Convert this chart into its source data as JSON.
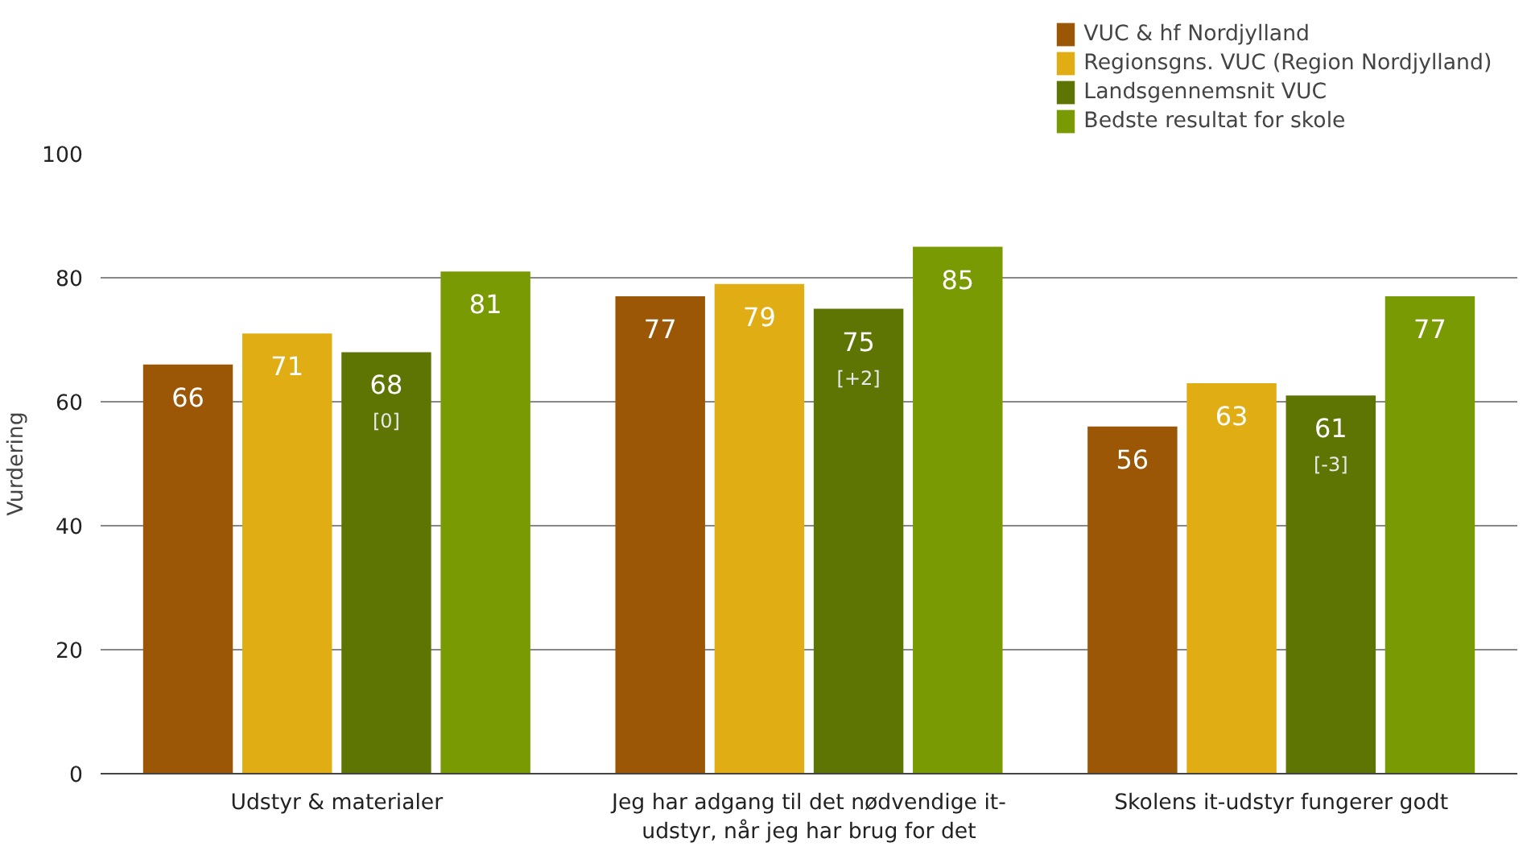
{
  "chart_data": {
    "type": "bar",
    "ylabel": "Vurdering",
    "categories": [
      "Udstyr & materialer",
      "Jeg har adgang til det nødvendige it-udstyr, når jeg har brug for det",
      "Skolens it-udstyr fungerer godt"
    ],
    "series": [
      {
        "name": "VUC & hf Nordjylland",
        "color": "#9b5705",
        "values": [
          66,
          77,
          56
        ],
        "value_labels": [
          "66",
          "77",
          "56"
        ]
      },
      {
        "name": "Regionsgns. VUC (Region Nordjylland)",
        "color": "#e0ae14",
        "values": [
          71,
          79,
          63
        ],
        "value_labels": [
          "71",
          "79",
          "63"
        ]
      },
      {
        "name": "Landsgennemsnit VUC",
        "color": "#5e7504",
        "values": [
          68,
          75,
          61
        ],
        "value_labels": [
          "68\n[0]",
          "75\n[+2]",
          "61\n[-3]"
        ]
      },
      {
        "name": "Bedste resultat for skole",
        "color": "#7a9a04",
        "values": [
          81,
          85,
          77
        ],
        "value_labels": [
          "81",
          "85",
          "77"
        ]
      }
    ],
    "ylim": [
      0,
      100
    ],
    "yticks": [
      0,
      20,
      40,
      60,
      80,
      100
    ],
    "grid": "y",
    "legend": "top right"
  }
}
